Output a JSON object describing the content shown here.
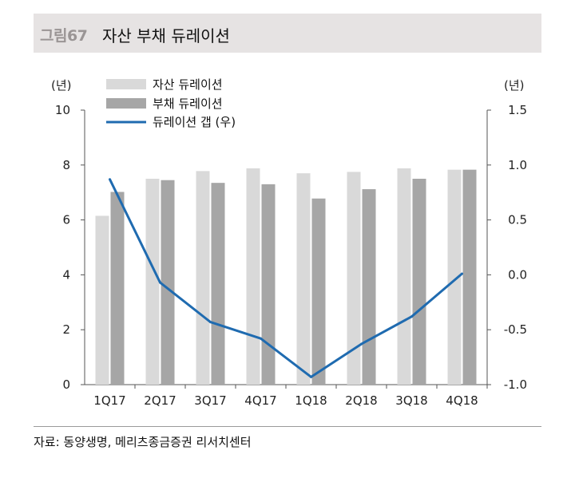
{
  "figure": {
    "number": "그림67",
    "title": "자산 부채 듀레이션"
  },
  "source": "자료: 동양생명, 메리츠종금증권 리서치센터",
  "colors": {
    "title_bg": "#e6e3e3",
    "asset_bar": "#d9d9d9",
    "liability_bar": "#a6a6a6",
    "gap_line": "#1f6bb0",
    "axis": "#555555"
  },
  "chart_data": {
    "type": "bar",
    "categories": [
      "1Q17",
      "2Q17",
      "3Q17",
      "4Q17",
      "1Q18",
      "2Q18",
      "3Q18",
      "4Q18"
    ],
    "y_left": {
      "unit_label": "(년)",
      "range": [
        0,
        10
      ],
      "ticks": [
        "0",
        "2",
        "4",
        "6",
        "8",
        "10"
      ]
    },
    "y_right": {
      "unit_label": "(년)",
      "range": [
        -1.0,
        1.5
      ],
      "ticks": [
        "-1.0",
        "-0.5",
        "0.0",
        "0.5",
        "1.0",
        "1.5"
      ]
    },
    "series": [
      {
        "name": "자산 듀레이션",
        "type": "bar",
        "axis": "left",
        "values": [
          6.15,
          7.5,
          7.78,
          7.88,
          7.7,
          7.75,
          7.88,
          7.83
        ]
      },
      {
        "name": "부채 듀레이션",
        "type": "bar",
        "axis": "left",
        "values": [
          7.02,
          7.45,
          7.35,
          7.3,
          6.78,
          7.12,
          7.5,
          7.83
        ]
      },
      {
        "name": "듀레이션 갭 (우)",
        "type": "line",
        "axis": "right",
        "values": [
          0.87,
          -0.07,
          -0.43,
          -0.58,
          -0.93,
          -0.63,
          -0.38,
          0.01
        ]
      }
    ],
    "legend_position": "top-left",
    "grid": false
  }
}
